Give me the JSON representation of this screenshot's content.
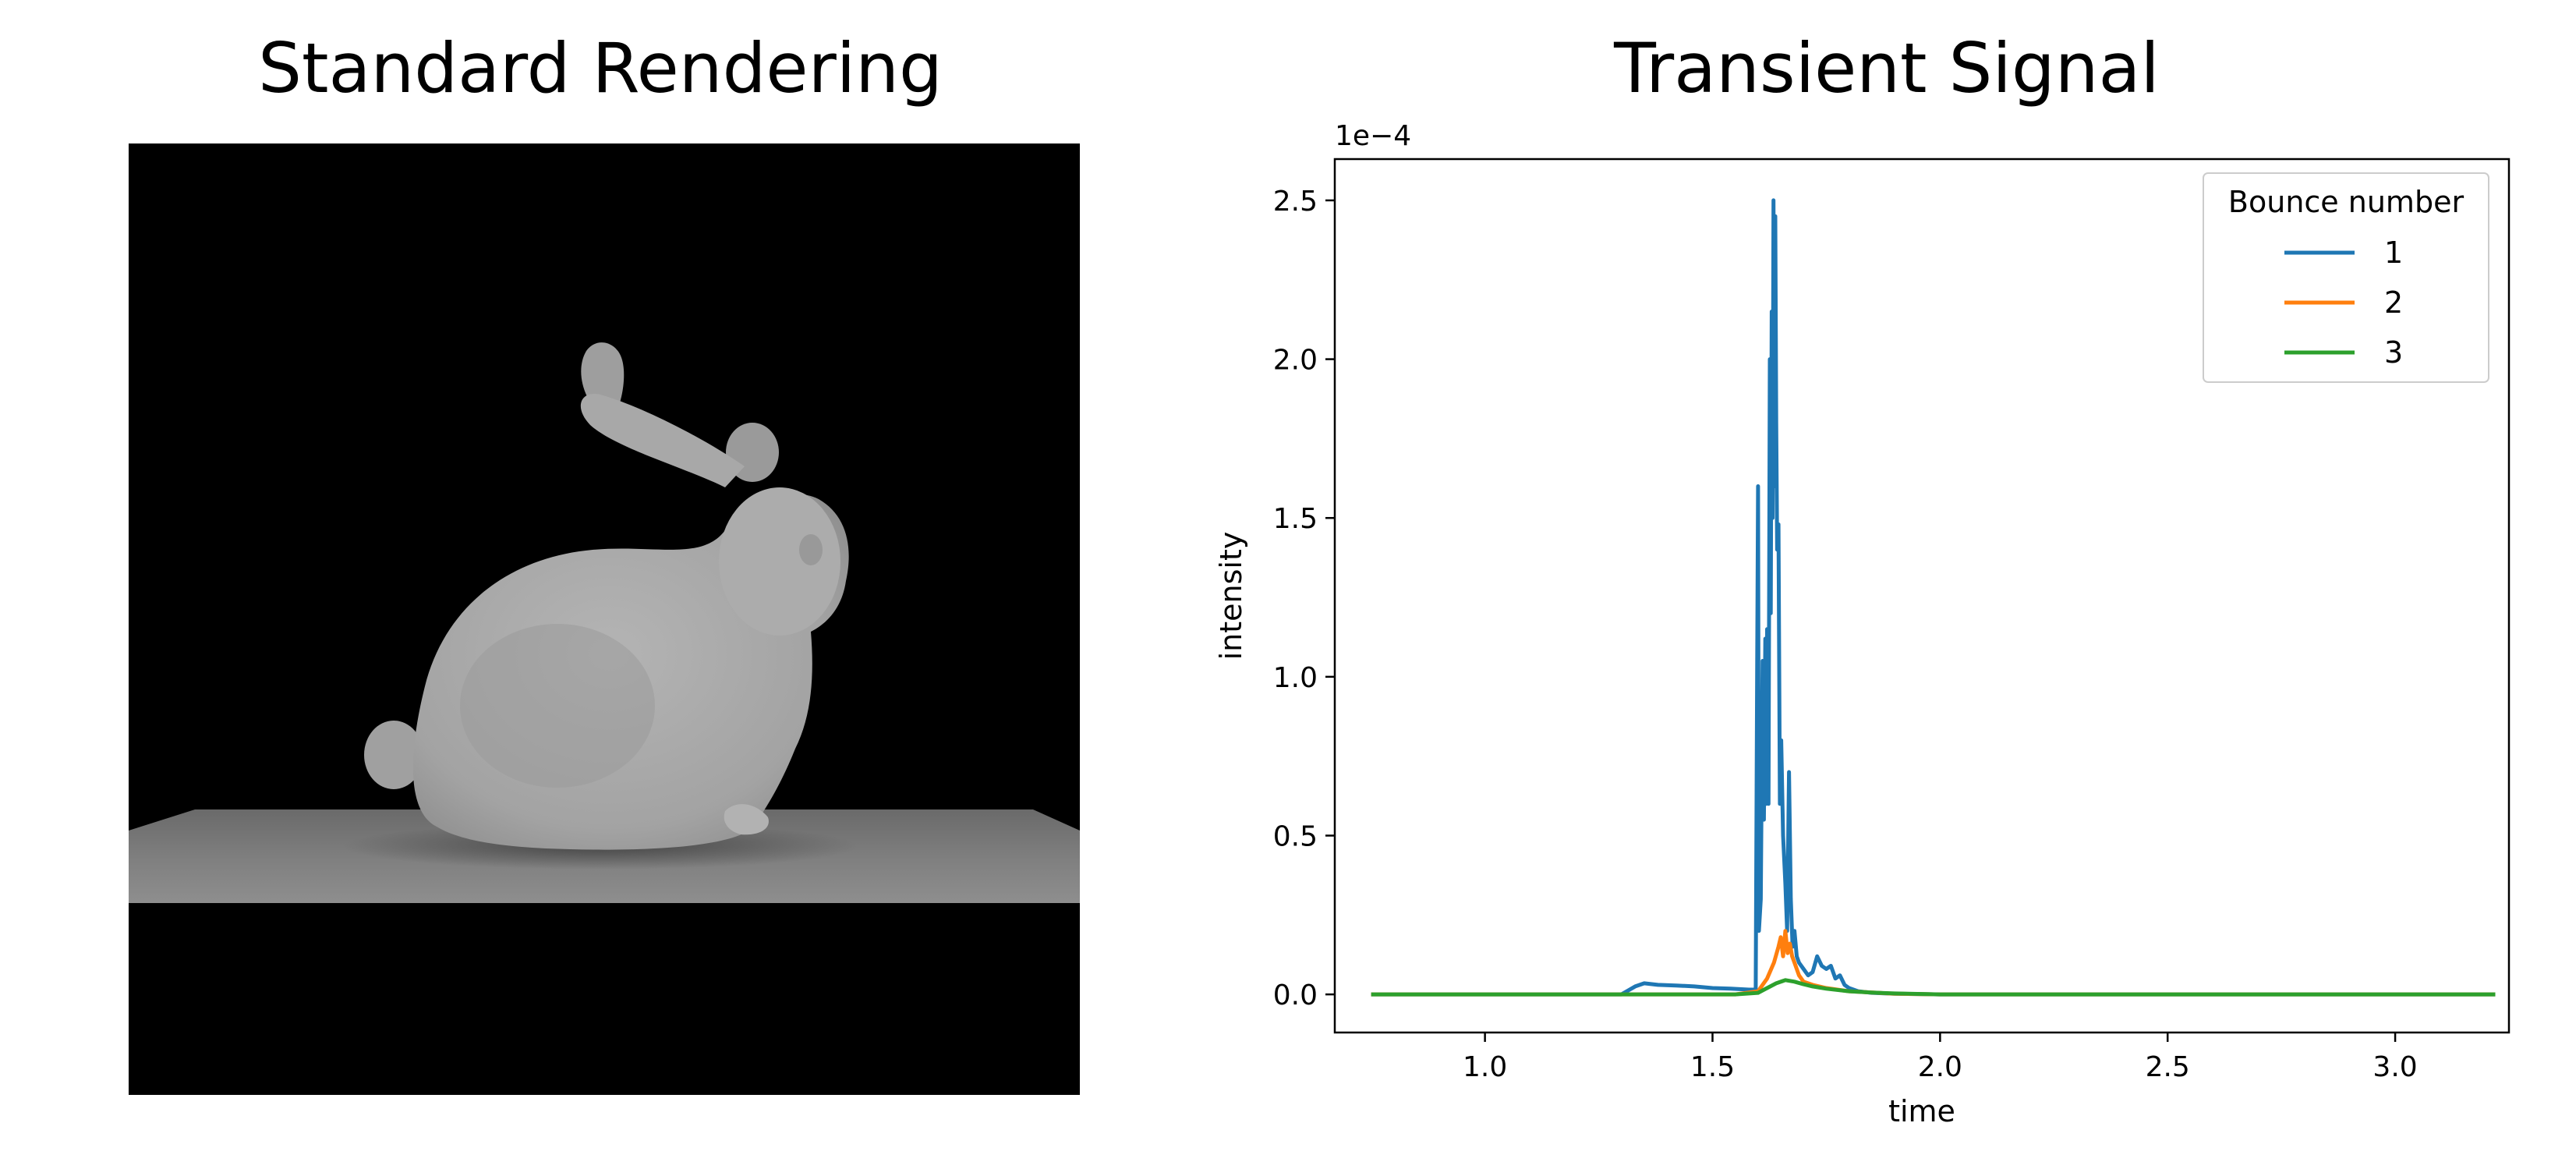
{
  "left_panel": {
    "title": "Standard Rendering",
    "image_subject": "bunny-render"
  },
  "chart_data": {
    "type": "line",
    "title": "Transient Signal",
    "xlabel": "time",
    "ylabel": "intensity",
    "offset_text": "1e−4",
    "xlim": [
      0.67,
      3.25
    ],
    "ylim": [
      -0.12,
      2.63
    ],
    "xticks": [
      "1.0",
      "1.5",
      "2.0",
      "2.5",
      "3.0"
    ],
    "xtick_values": [
      1.0,
      1.5,
      2.0,
      2.5,
      3.0
    ],
    "yticks": [
      "0.0",
      "0.5",
      "1.0",
      "1.5",
      "2.0",
      "2.5"
    ],
    "ytick_values": [
      0.0,
      0.5,
      1.0,
      1.5,
      2.0,
      2.5
    ],
    "grid": false,
    "legend": {
      "title": "Bounce number",
      "placement": "top-right"
    },
    "series": [
      {
        "name": "1",
        "color": "#1f77b4",
        "x": [
          0.75,
          1.3,
          1.33,
          1.35,
          1.38,
          1.42,
          1.46,
          1.5,
          1.54,
          1.58,
          1.595,
          1.598,
          1.6,
          1.602,
          1.606,
          1.61,
          1.613,
          1.616,
          1.618,
          1.62,
          1.623,
          1.626,
          1.628,
          1.63,
          1.632,
          1.634,
          1.636,
          1.638,
          1.64,
          1.642,
          1.645,
          1.648,
          1.651,
          1.655,
          1.66,
          1.664,
          1.668,
          1.672,
          1.676,
          1.68,
          1.685,
          1.69,
          1.7,
          1.71,
          1.72,
          1.73,
          1.74,
          1.75,
          1.76,
          1.77,
          1.78,
          1.79,
          1.8,
          1.82,
          1.85,
          1.9,
          2.0,
          2.5,
          3.22
        ],
        "y": [
          0.0,
          0.0,
          0.025,
          0.035,
          0.03,
          0.028,
          0.025,
          0.02,
          0.018,
          0.015,
          0.015,
          1.0,
          1.6,
          0.2,
          0.3,
          1.05,
          0.55,
          1.12,
          0.6,
          1.15,
          0.6,
          2.0,
          1.2,
          2.15,
          1.5,
          2.5,
          1.6,
          2.45,
          1.8,
          1.4,
          1.48,
          0.6,
          0.8,
          0.5,
          0.35,
          0.2,
          0.7,
          0.3,
          0.15,
          0.2,
          0.12,
          0.1,
          0.08,
          0.06,
          0.07,
          0.12,
          0.09,
          0.08,
          0.09,
          0.05,
          0.06,
          0.03,
          0.02,
          0.01,
          0.005,
          0.002,
          0.0,
          0.0,
          0.0
        ]
      },
      {
        "name": "2",
        "color": "#ff7f0e",
        "x": [
          0.75,
          1.55,
          1.6,
          1.62,
          1.635,
          1.645,
          1.65,
          1.655,
          1.66,
          1.665,
          1.67,
          1.675,
          1.68,
          1.69,
          1.7,
          1.72,
          1.75,
          1.8,
          1.9,
          2.0,
          3.22
        ],
        "y": [
          0.0,
          0.0,
          0.01,
          0.05,
          0.1,
          0.15,
          0.18,
          0.12,
          0.2,
          0.13,
          0.16,
          0.12,
          0.1,
          0.06,
          0.04,
          0.03,
          0.02,
          0.01,
          0.002,
          0.0,
          0.0
        ]
      },
      {
        "name": "3",
        "color": "#2ca02c",
        "x": [
          0.75,
          1.55,
          1.6,
          1.62,
          1.64,
          1.66,
          1.68,
          1.7,
          1.72,
          1.75,
          1.8,
          1.85,
          1.9,
          2.0,
          3.22
        ],
        "y": [
          0.0,
          0.0,
          0.005,
          0.02,
          0.035,
          0.045,
          0.04,
          0.032,
          0.025,
          0.018,
          0.01,
          0.006,
          0.003,
          0.0,
          0.0
        ]
      }
    ]
  }
}
